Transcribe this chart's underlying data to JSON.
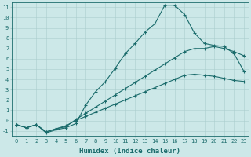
{
  "xlabel": "Humidex (Indice chaleur)",
  "xlim": [
    -0.5,
    23.5
  ],
  "ylim": [
    -1.5,
    11.5
  ],
  "xticks": [
    0,
    1,
    2,
    3,
    4,
    5,
    6,
    7,
    8,
    9,
    10,
    11,
    12,
    13,
    14,
    15,
    16,
    17,
    18,
    19,
    20,
    21,
    22,
    23
  ],
  "yticks": [
    -1,
    0,
    1,
    2,
    3,
    4,
    5,
    6,
    7,
    8,
    9,
    10,
    11
  ],
  "bg_color": "#cce8e8",
  "line_color": "#1a6b6b",
  "grid_color": "#aacece",
  "line1_x": [
    0,
    1,
    2,
    3,
    4,
    5,
    6,
    7,
    8,
    9,
    10,
    11,
    12,
    13,
    14,
    15,
    16,
    17,
    18,
    19,
    20,
    21,
    22,
    23
  ],
  "line1_y": [
    -0.4,
    -0.7,
    -0.4,
    -1.2,
    -0.9,
    -0.7,
    -0.3,
    1.5,
    2.8,
    3.8,
    5.1,
    6.5,
    7.5,
    8.6,
    9.4,
    11.2,
    11.2,
    10.3,
    8.5,
    7.5,
    7.3,
    7.2,
    6.5,
    4.8
  ],
  "line2_x": [
    0,
    1,
    2,
    3,
    4,
    5,
    6,
    7,
    8,
    9,
    10,
    11,
    12,
    13,
    14,
    15,
    16,
    17,
    18,
    19,
    20,
    21,
    22,
    23
  ],
  "line2_y": [
    -0.4,
    -0.7,
    -0.4,
    -1.1,
    -0.8,
    -0.6,
    0.1,
    0.7,
    1.3,
    1.9,
    2.5,
    3.1,
    3.7,
    4.3,
    4.9,
    5.5,
    6.1,
    6.7,
    7.0,
    7.0,
    7.2,
    7.0,
    6.7,
    6.3
  ],
  "line3_x": [
    0,
    1,
    2,
    3,
    4,
    5,
    6,
    7,
    8,
    9,
    10,
    11,
    12,
    13,
    14,
    15,
    16,
    17,
    18,
    19,
    20,
    21,
    22,
    23
  ],
  "line3_y": [
    -0.4,
    -0.7,
    -0.4,
    -1.1,
    -0.8,
    -0.5,
    0.0,
    0.4,
    0.8,
    1.2,
    1.6,
    2.0,
    2.4,
    2.8,
    3.2,
    3.6,
    4.0,
    4.4,
    4.5,
    4.4,
    4.3,
    4.1,
    3.9,
    3.8
  ],
  "marker": "+",
  "markersize": 3,
  "linewidth": 0.8,
  "tick_fontsize": 5,
  "label_fontsize": 6.5
}
